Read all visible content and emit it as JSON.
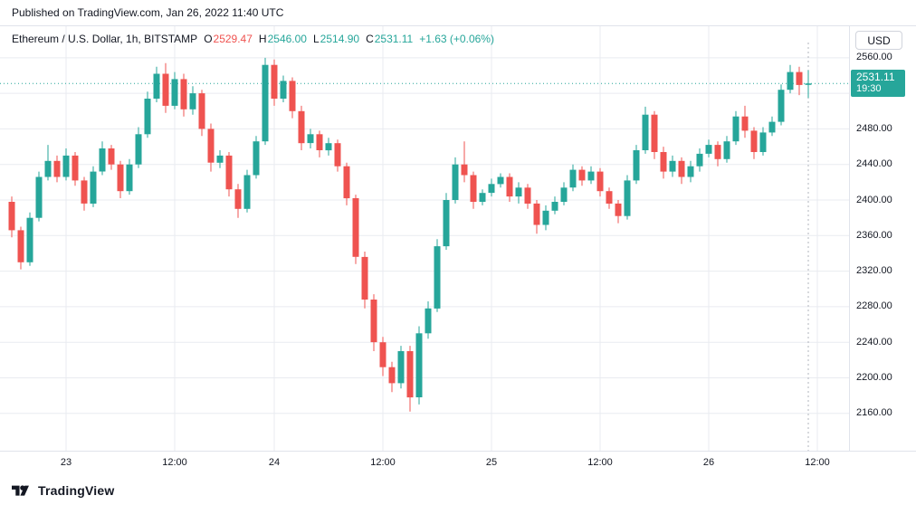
{
  "published": {
    "text": "Published on TradingView.com, Jan 26, 2022 11:40 UTC"
  },
  "legend": {
    "symbol": "Ethereum / U.S. Dollar, 1h, BITSTAMP",
    "ohlc": [
      {
        "label": "O",
        "value": "2529.47",
        "color": "#ef5350"
      },
      {
        "label": "H",
        "value": "2546.00",
        "color": "#26a69a"
      },
      {
        "label": "L",
        "value": "2514.90",
        "color": "#26a69a"
      },
      {
        "label": "C",
        "value": "2531.11",
        "color": "#26a69a"
      }
    ],
    "change": "+1.63 (+0.06%)",
    "change_color": "#26a69a"
  },
  "price_scale": {
    "currency_button": "USD",
    "labels": [
      "2560.00",
      "2480.00",
      "2440.00",
      "2400.00",
      "2360.00",
      "2320.00",
      "2280.00",
      "2240.00",
      "2200.00",
      "2160.00"
    ],
    "last_price_badge": {
      "price": "2531.11",
      "countdown": "19:30",
      "bg": "#26a69a"
    }
  },
  "footer": {
    "brand": "TradingView"
  },
  "colors": {
    "up": "#26a69a",
    "down": "#ef5350",
    "grid": "#e9ebf0",
    "axis_border": "#e0e3eb",
    "text": "#131722",
    "badge_bg": "#26a69a",
    "dashed_marker": "#b2b5be"
  },
  "chart_data": {
    "type": "candlestick",
    "title": "Ethereum / U.S. Dollar, 1h, BITSTAMP",
    "interval": "1h",
    "exchange": "BITSTAMP",
    "grid": true,
    "ylim": [
      2118,
      2568
    ],
    "y_gridlines": [
      2160,
      2200,
      2240,
      2280,
      2320,
      2360,
      2400,
      2440,
      2480,
      2520,
      2560
    ],
    "last_price": 2531.11,
    "x_ticks": [
      {
        "index": 6,
        "label": "23"
      },
      {
        "index": 18,
        "label": "12:00"
      },
      {
        "index": 29,
        "label": "24"
      },
      {
        "index": 41,
        "label": "12:00"
      },
      {
        "index": 53,
        "label": "25"
      },
      {
        "index": 65,
        "label": "12:00"
      },
      {
        "index": 77,
        "label": "26"
      },
      {
        "index": 89,
        "label": "12:00"
      }
    ],
    "candles": [
      [
        2398,
        2404,
        2358,
        2366
      ],
      [
        2366,
        2370,
        2322,
        2330
      ],
      [
        2330,
        2386,
        2326,
        2380
      ],
      [
        2380,
        2432,
        2376,
        2426
      ],
      [
        2426,
        2462,
        2422,
        2444
      ],
      [
        2444,
        2450,
        2420,
        2426
      ],
      [
        2426,
        2458,
        2422,
        2450
      ],
      [
        2450,
        2454,
        2416,
        2422
      ],
      [
        2422,
        2426,
        2388,
        2396
      ],
      [
        2396,
        2438,
        2392,
        2432
      ],
      [
        2432,
        2466,
        2428,
        2458
      ],
      [
        2458,
        2462,
        2434,
        2440
      ],
      [
        2440,
        2444,
        2402,
        2410
      ],
      [
        2410,
        2446,
        2406,
        2440
      ],
      [
        2440,
        2482,
        2436,
        2474
      ],
      [
        2474,
        2522,
        2470,
        2514
      ],
      [
        2514,
        2550,
        2510,
        2542
      ],
      [
        2542,
        2554,
        2498,
        2506
      ],
      [
        2506,
        2544,
        2502,
        2536
      ],
      [
        2536,
        2542,
        2494,
        2502
      ],
      [
        2502,
        2528,
        2496,
        2520
      ],
      [
        2520,
        2524,
        2472,
        2480
      ],
      [
        2480,
        2486,
        2432,
        2442
      ],
      [
        2442,
        2456,
        2436,
        2450
      ],
      [
        2450,
        2454,
        2404,
        2412
      ],
      [
        2412,
        2418,
        2380,
        2390
      ],
      [
        2390,
        2434,
        2386,
        2428
      ],
      [
        2428,
        2472,
        2424,
        2466
      ],
      [
        2466,
        2560,
        2462,
        2552
      ],
      [
        2552,
        2558,
        2506,
        2514
      ],
      [
        2514,
        2540,
        2510,
        2534
      ],
      [
        2534,
        2538,
        2492,
        2500
      ],
      [
        2500,
        2506,
        2456,
        2464
      ],
      [
        2464,
        2480,
        2458,
        2474
      ],
      [
        2474,
        2478,
        2448,
        2456
      ],
      [
        2456,
        2470,
        2450,
        2464
      ],
      [
        2464,
        2468,
        2432,
        2438
      ],
      [
        2438,
        2442,
        2394,
        2402
      ],
      [
        2402,
        2406,
        2328,
        2336
      ],
      [
        2336,
        2342,
        2278,
        2288
      ],
      [
        2288,
        2294,
        2230,
        2240
      ],
      [
        2240,
        2246,
        2202,
        2212
      ],
      [
        2212,
        2218,
        2184,
        2194
      ],
      [
        2194,
        2236,
        2188,
        2230
      ],
      [
        2230,
        2236,
        2162,
        2178
      ],
      [
        2178,
        2258,
        2170,
        2250
      ],
      [
        2250,
        2286,
        2244,
        2278
      ],
      [
        2278,
        2356,
        2274,
        2348
      ],
      [
        2348,
        2408,
        2344,
        2400
      ],
      [
        2400,
        2448,
        2396,
        2440
      ],
      [
        2440,
        2466,
        2420,
        2428
      ],
      [
        2428,
        2432,
        2390,
        2398
      ],
      [
        2398,
        2412,
        2394,
        2408
      ],
      [
        2408,
        2424,
        2404,
        2418
      ],
      [
        2418,
        2430,
        2414,
        2426
      ],
      [
        2426,
        2430,
        2398,
        2404
      ],
      [
        2404,
        2420,
        2396,
        2414
      ],
      [
        2414,
        2418,
        2390,
        2396
      ],
      [
        2396,
        2400,
        2362,
        2372
      ],
      [
        2372,
        2394,
        2366,
        2388
      ],
      [
        2388,
        2404,
        2384,
        2398
      ],
      [
        2398,
        2420,
        2394,
        2414
      ],
      [
        2414,
        2440,
        2410,
        2434
      ],
      [
        2434,
        2438,
        2416,
        2422
      ],
      [
        2422,
        2438,
        2418,
        2432
      ],
      [
        2432,
        2436,
        2404,
        2410
      ],
      [
        2410,
        2414,
        2390,
        2396
      ],
      [
        2396,
        2400,
        2374,
        2382
      ],
      [
        2382,
        2428,
        2378,
        2422
      ],
      [
        2422,
        2462,
        2418,
        2456
      ],
      [
        2456,
        2505,
        2452,
        2496
      ],
      [
        2496,
        2500,
        2446,
        2454
      ],
      [
        2454,
        2460,
        2424,
        2432
      ],
      [
        2432,
        2450,
        2426,
        2444
      ],
      [
        2444,
        2448,
        2418,
        2426
      ],
      [
        2426,
        2444,
        2420,
        2438
      ],
      [
        2438,
        2458,
        2432,
        2452
      ],
      [
        2452,
        2468,
        2448,
        2462
      ],
      [
        2462,
        2466,
        2438,
        2446
      ],
      [
        2446,
        2472,
        2442,
        2466
      ],
      [
        2466,
        2500,
        2462,
        2494
      ],
      [
        2494,
        2506,
        2470,
        2478
      ],
      [
        2478,
        2482,
        2446,
        2454
      ],
      [
        2454,
        2482,
        2450,
        2476
      ],
      [
        2476,
        2494,
        2472,
        2488
      ],
      [
        2488,
        2530,
        2484,
        2524
      ],
      [
        2524,
        2552,
        2520,
        2544
      ],
      [
        2544,
        2550,
        2518,
        2529.48
      ],
      [
        2529.47,
        2546,
        2514.9,
        2531.11
      ]
    ]
  }
}
